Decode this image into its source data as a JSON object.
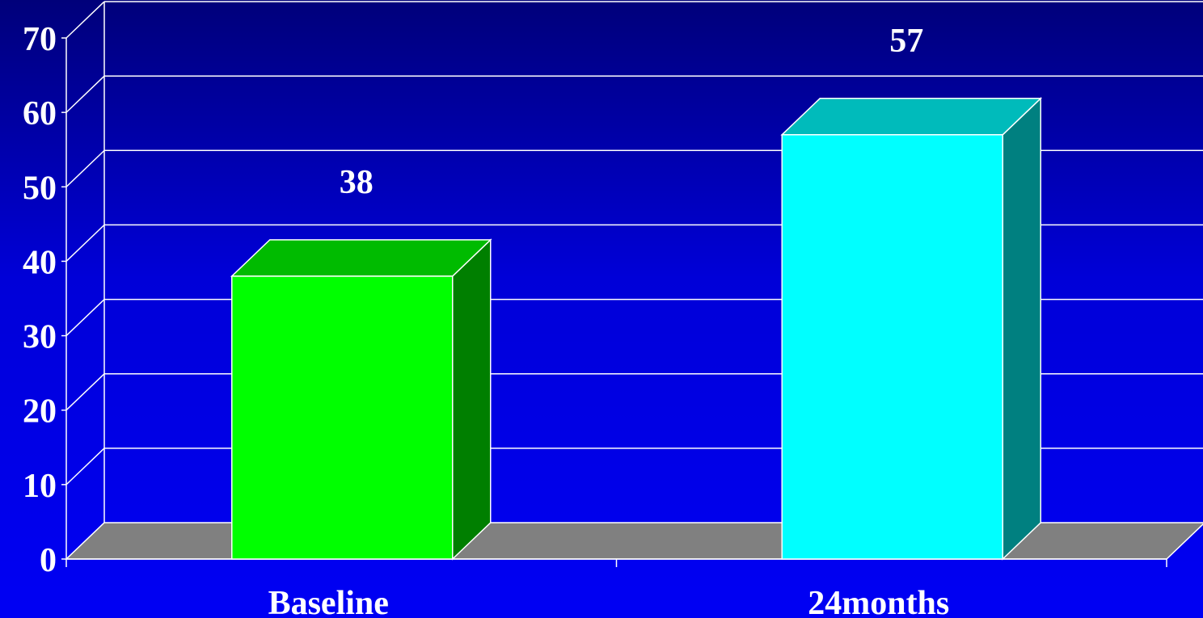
{
  "chart_data": {
    "type": "bar",
    "categories": [
      "Baseline",
      "24months"
    ],
    "values": [
      38,
      57
    ],
    "data_labels": [
      "38",
      "57"
    ],
    "title": "",
    "xlabel": "",
    "ylabel": "",
    "ylim": [
      0,
      70
    ],
    "yticks": [
      "0",
      "10",
      "20",
      "30",
      "40",
      "50",
      "60",
      "70"
    ],
    "grid": true,
    "three_d": true,
    "colors": {
      "bars": [
        {
          "front": "#00ff00",
          "top": "#00bb00",
          "side": "#007f00"
        },
        {
          "front": "#00ffff",
          "top": "#00bbbb",
          "side": "#008080"
        }
      ],
      "floor": "#808080",
      "grid": "#ffffff",
      "text": "#ffffff"
    }
  }
}
